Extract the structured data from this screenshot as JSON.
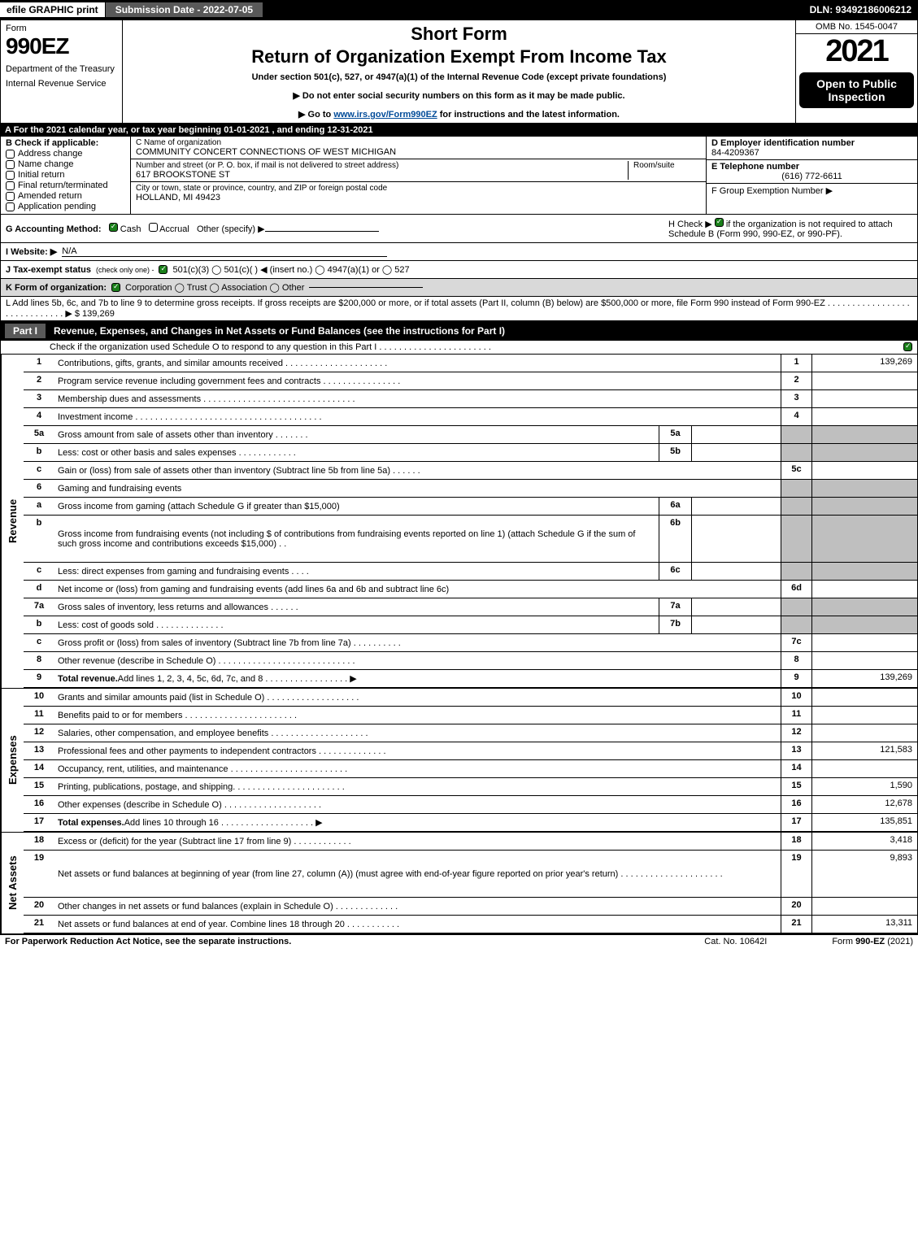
{
  "topbar": {
    "efile": "efile GRAPHIC print",
    "submission": "Submission Date - 2022-07-05",
    "dln": "DLN: 93492186006212"
  },
  "header": {
    "form_label": "Form",
    "form_number": "990EZ",
    "department": "Department of the Treasury",
    "irs": "Internal Revenue Service",
    "short_form": "Short Form",
    "main_title": "Return of Organization Exempt From Income Tax",
    "subtitle": "Under section 501(c), 527, or 4947(a)(1) of the Internal Revenue Code (except private foundations)",
    "instruction1": "▶ Do not enter social security numbers on this form as it may be made public.",
    "instruction2_prefix": "▶ Go to ",
    "instruction2_link": "www.irs.gov/Form990EZ",
    "instruction2_suffix": " for instructions and the latest information.",
    "omb": "OMB No. 1545-0047",
    "year": "2021",
    "open_public": "Open to Public Inspection"
  },
  "rowA": "A  For the 2021 calendar year, or tax year beginning 01-01-2021 , and ending 12-31-2021",
  "colB": {
    "header": "B  Check if applicable:",
    "items": [
      "Address change",
      "Name change",
      "Initial return",
      "Final return/terminated",
      "Amended return",
      "Application pending"
    ]
  },
  "colC": {
    "name_label": "C Name of organization",
    "name": "COMMUNITY CONCERT CONNECTIONS OF WEST MICHIGAN",
    "addr_label": "Number and street (or P. O. box, if mail is not delivered to street address)",
    "room_label": "Room/suite",
    "addr": "617 BROOKSTONE ST",
    "city_label": "City or town, state or province, country, and ZIP or foreign postal code",
    "city": "HOLLAND, MI  49423"
  },
  "colDEF": {
    "d_label": "D Employer identification number",
    "ein": "84-4209367",
    "e_label": "E Telephone number",
    "phone": "(616) 772-6611",
    "f_label": "F Group Exemption Number  ▶"
  },
  "rowG": {
    "label": "G Accounting Method:",
    "cash": "Cash",
    "accrual": "Accrual",
    "other": "Other (specify) ▶"
  },
  "rowH": {
    "prefix": "H  Check ▶",
    "text": " if the organization is not required to attach Schedule B (Form 990, 990-EZ, or 990-PF)."
  },
  "rowI": {
    "label": "I Website: ▶",
    "value": "N/A"
  },
  "rowJ": {
    "label": "J Tax-exempt status",
    "sub": "(check only one) -",
    "opts": "501(c)(3)   ◯ 501(c)(  ) ◀ (insert no.)   ◯ 4947(a)(1) or   ◯ 527"
  },
  "rowK": {
    "label": "K Form of organization:",
    "opts": "Corporation   ◯ Trust   ◯ Association   ◯ Other"
  },
  "rowL": {
    "text": "L Add lines 5b, 6c, and 7b to line 9 to determine gross receipts. If gross receipts are $200,000 or more, or if total assets (Part II, column (B) below) are $500,000 or more, file Form 990 instead of Form 990-EZ  .  .  .  .  .  .  .  .  .  .  .  .  .  .  .  .  .  .  .  .  .  .  .  .  .  .  .  .  .  ▶ $",
    "value": "139,269"
  },
  "partI": {
    "label": "Part I",
    "title": "Revenue, Expenses, and Changes in Net Assets or Fund Balances (see the instructions for Part I)",
    "check_text": "Check if the organization used Schedule O to respond to any question in this Part I  .  .  .  .  .  .  .  .  .  .  .  .  .  .  .  .  .  .  .  .  .  .  ."
  },
  "sections": {
    "revenue": "Revenue",
    "expenses": "Expenses",
    "netassets": "Net Assets"
  },
  "lines": [
    {
      "n": "1",
      "d": "Contributions, gifts, grants, and similar amounts received  .  .  .  .  .  .  .  .  .  .  .  .  .  .  .  .  .  .  .  .  .",
      "r": "1",
      "v": "139,269"
    },
    {
      "n": "2",
      "d": "Program service revenue including government fees and contracts  .  .  .  .  .  .  .  .  .  .  .  .  .  .  .  .",
      "r": "2",
      "v": ""
    },
    {
      "n": "3",
      "d": "Membership dues and assessments  .  .  .  .  .  .  .  .  .  .  .  .  .  .  .  .  .  .  .  .  .  .  .  .  .  .  .  .  .  .  .",
      "r": "3",
      "v": ""
    },
    {
      "n": "4",
      "d": "Investment income  .  .  .  .  .  .  .  .  .  .  .  .  .  .  .  .  .  .  .  .  .  .  .  .  .  .  .  .  .  .  .  .  .  .  .  .  .  .",
      "r": "4",
      "v": ""
    },
    {
      "n": "5a",
      "d": "Gross amount from sale of assets other than inventory  .  .  .  .  .  .  .",
      "sub": "5a",
      "shaded": true
    },
    {
      "n": "b",
      "d": "Less: cost or other basis and sales expenses  .  .  .  .  .  .  .  .  .  .  .  .",
      "sub": "5b",
      "shaded": true
    },
    {
      "n": "c",
      "d": "Gain or (loss) from sale of assets other than inventory (Subtract line 5b from line 5a)  .  .  .  .  .  .",
      "r": "5c",
      "v": ""
    },
    {
      "n": "6",
      "d": "Gaming and fundraising events",
      "shaded": true,
      "nobox": true
    },
    {
      "n": "a",
      "d": "Gross income from gaming (attach Schedule G if greater than $15,000)",
      "sub": "6a",
      "shaded": true
    },
    {
      "n": "b",
      "d": "Gross income from fundraising events (not including $                         of contributions from fundraising events reported on line 1) (attach Schedule G if the sum of such gross income and contributions exceeds $15,000)     .   .",
      "sub": "6b",
      "shaded": true,
      "tall": true
    },
    {
      "n": "c",
      "d": "Less: direct expenses from gaming and fundraising events    .   .   .   .",
      "sub": "6c",
      "shaded": true
    },
    {
      "n": "d",
      "d": "Net income or (loss) from gaming and fundraising events (add lines 6a and 6b and subtract line 6c)",
      "r": "6d",
      "v": ""
    },
    {
      "n": "7a",
      "d": "Gross sales of inventory, less returns and allowances  .  .  .  .  .  .",
      "sub": "7a",
      "shaded": true
    },
    {
      "n": "b",
      "d": "Less: cost of goods sold       .   .   .   .   .   .   .   .   .   .   .   .   .   .",
      "sub": "7b",
      "shaded": true
    },
    {
      "n": "c",
      "d": "Gross profit or (loss) from sales of inventory (Subtract line 7b from line 7a)  .  .  .  .  .  .  .  .  .  .",
      "r": "7c",
      "v": ""
    },
    {
      "n": "8",
      "d": "Other revenue (describe in Schedule O)  .  .  .  .  .  .  .  .  .  .  .  .  .  .  .  .  .  .  .  .  .  .  .  .  .  .  .  .",
      "r": "8",
      "v": ""
    },
    {
      "n": "9",
      "d": "Total revenue. Add lines 1, 2, 3, 4, 5c, 6d, 7c, and 8   .   .   .   .   .   .   .   .   .   .   .   .   .   .   .   .   .  ▶",
      "r": "9",
      "v": "139,269",
      "bold": true
    }
  ],
  "exp_lines": [
    {
      "n": "10",
      "d": "Grants and similar amounts paid (list in Schedule O)  .  .  .  .  .  .  .  .  .  .  .  .  .  .  .  .  .  .  .",
      "r": "10",
      "v": ""
    },
    {
      "n": "11",
      "d": "Benefits paid to or for members     .   .   .   .   .   .   .   .   .   .   .   .   .   .   .   .   .   .   .   .   .   .   .",
      "r": "11",
      "v": ""
    },
    {
      "n": "12",
      "d": "Salaries, other compensation, and employee benefits .  .  .  .  .  .  .  .  .  .  .  .  .  .  .  .  .  .  .  .",
      "r": "12",
      "v": ""
    },
    {
      "n": "13",
      "d": "Professional fees and other payments to independent contractors  .  .  .  .  .  .  .  .  .  .  .  .  .  .",
      "r": "13",
      "v": "121,583"
    },
    {
      "n": "14",
      "d": "Occupancy, rent, utilities, and maintenance .  .  .  .  .  .  .  .  .  .  .  .  .  .  .  .  .  .  .  .  .  .  .  .",
      "r": "14",
      "v": ""
    },
    {
      "n": "15",
      "d": "Printing, publications, postage, and shipping.  .  .  .  .  .  .  .  .  .  .  .  .  .  .  .  .  .  .  .  .  .  .",
      "r": "15",
      "v": "1,590"
    },
    {
      "n": "16",
      "d": "Other expenses (describe in Schedule O)     .   .   .   .   .   .   .   .   .   .   .   .   .   .   .   .   .   .   .   .",
      "r": "16",
      "v": "12,678"
    },
    {
      "n": "17",
      "d": "Total expenses. Add lines 10 through 16     .   .   .   .   .   .   .   .   .   .   .   .   .   .   .   .   .   .   .  ▶",
      "r": "17",
      "v": "135,851",
      "bold": true
    }
  ],
  "na_lines": [
    {
      "n": "18",
      "d": "Excess or (deficit) for the year (Subtract line 17 from line 9)        .   .   .   .   .   .   .   .   .   .   .   .",
      "r": "18",
      "v": "3,418"
    },
    {
      "n": "19",
      "d": "Net assets or fund balances at beginning of year (from line 27, column (A)) (must agree with end-of-year figure reported on prior year's return) .  .  .  .  .  .  .  .  .  .  .  .  .  .  .  .  .  .  .  .  .",
      "r": "19",
      "v": "9,893",
      "tall": true
    },
    {
      "n": "20",
      "d": "Other changes in net assets or fund balances (explain in Schedule O) .  .  .  .  .  .  .  .  .  .  .  .  .",
      "r": "20",
      "v": ""
    },
    {
      "n": "21",
      "d": "Net assets or fund balances at end of year. Combine lines 18 through 20 .  .  .  .  .  .  .  .  .  .  .",
      "r": "21",
      "v": "13,311"
    }
  ],
  "footer": {
    "left": "For Paperwork Reduction Act Notice, see the separate instructions.",
    "mid": "Cat. No. 10642I",
    "right_prefix": "Form ",
    "right_form": "990-EZ",
    "right_suffix": " (2021)"
  }
}
